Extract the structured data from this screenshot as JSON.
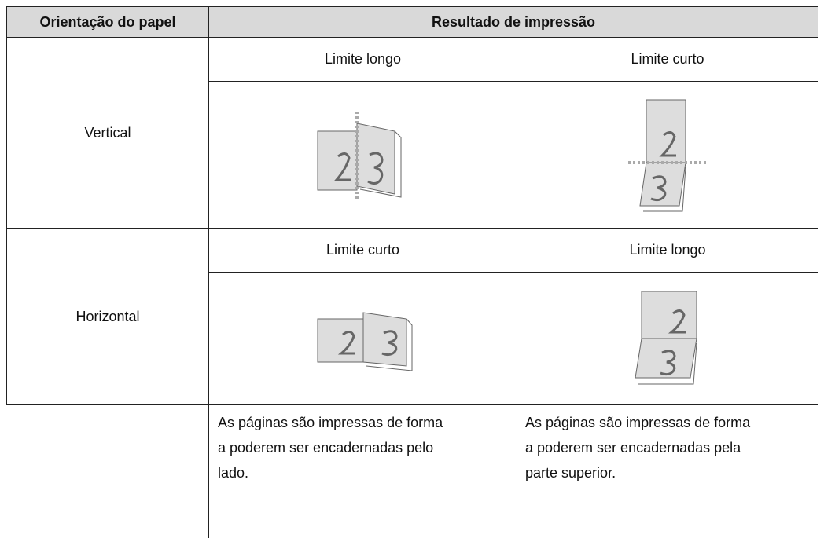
{
  "table": {
    "header": [
      "Orientação do papel",
      "Resultado de impressão"
    ],
    "rows": [
      {
        "orientation": "Vertical",
        "options": [
          "Limite longo",
          "Limite curto"
        ]
      },
      {
        "orientation": "Horizontal",
        "options": [
          "Limite curto",
          "Limite longo"
        ]
      }
    ],
    "notes": [
      "As páginas são impressas de forma a poderem ser encadernadas pelo lado.",
      "As páginas são impressas de forma a poderem ser encadernadas pela parte superior."
    ]
  }
}
